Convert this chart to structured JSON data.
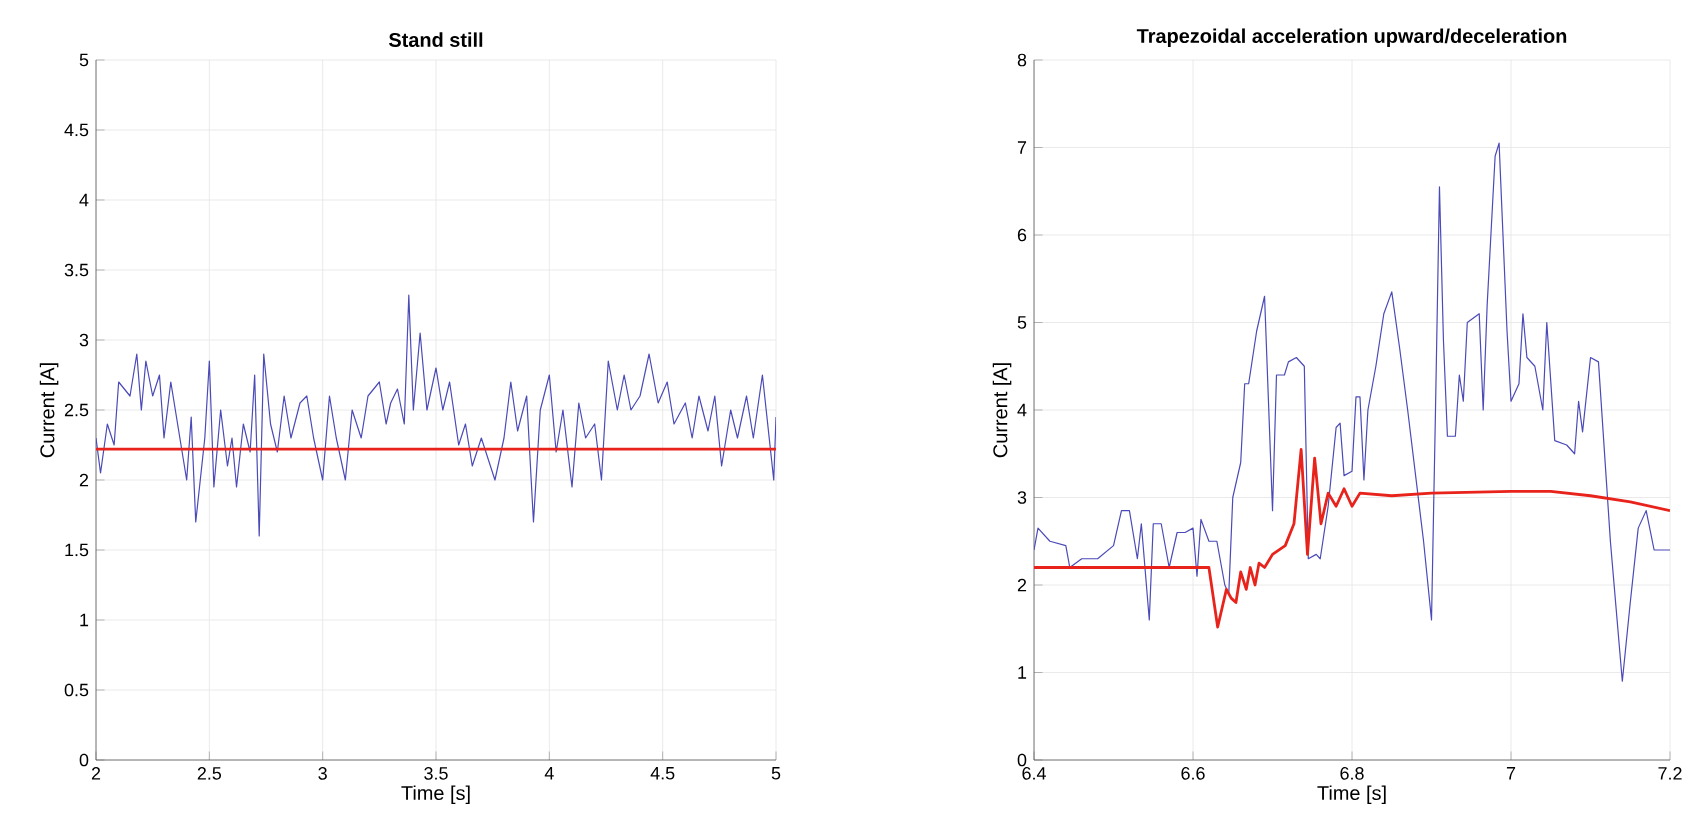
{
  "chart_data": [
    {
      "type": "line",
      "title": "Stand still",
      "xlabel": "Time [s]",
      "ylabel": "Current [A]",
      "xlim": [
        2,
        5
      ],
      "ylim": [
        0,
        5
      ],
      "xticks": [
        2,
        2.5,
        3,
        3.5,
        4,
        4.5,
        5
      ],
      "yticks": [
        0,
        0.5,
        1,
        1.5,
        2,
        2.5,
        3,
        3.5,
        4,
        4.5,
        5
      ],
      "grid": true,
      "series": [
        {
          "color": "#4a4ab8",
          "x": [
            2.0,
            2.02,
            2.05,
            2.08,
            2.1,
            2.15,
            2.18,
            2.2,
            2.22,
            2.25,
            2.28,
            2.3,
            2.33,
            2.36,
            2.38,
            2.4,
            2.42,
            2.44,
            2.48,
            2.5,
            2.52,
            2.55,
            2.58,
            2.6,
            2.62,
            2.65,
            2.68,
            2.7,
            2.72,
            2.74,
            2.77,
            2.8,
            2.83,
            2.86,
            2.9,
            2.93,
            2.96,
            3.0,
            3.03,
            3.06,
            3.1,
            3.13,
            3.17,
            3.2,
            3.25,
            3.28,
            3.3,
            3.33,
            3.36,
            3.38,
            3.4,
            3.43,
            3.46,
            3.5,
            3.53,
            3.56,
            3.6,
            3.63,
            3.66,
            3.7,
            3.73,
            3.76,
            3.8,
            3.83,
            3.86,
            3.9,
            3.93,
            3.96,
            4.0,
            4.03,
            4.06,
            4.1,
            4.13,
            4.16,
            4.2,
            4.23,
            4.26,
            4.3,
            4.33,
            4.36,
            4.4,
            4.44,
            4.48,
            4.52,
            4.55,
            4.6,
            4.63,
            4.66,
            4.7,
            4.73,
            4.76,
            4.8,
            4.83,
            4.87,
            4.9,
            4.94,
            4.97,
            4.99,
            5.0
          ],
          "values": [
            2.3,
            2.05,
            2.4,
            2.25,
            2.7,
            2.6,
            2.9,
            2.5,
            2.85,
            2.6,
            2.75,
            2.3,
            2.7,
            2.4,
            2.2,
            2.0,
            2.45,
            1.7,
            2.3,
            2.85,
            1.95,
            2.5,
            2.1,
            2.3,
            1.95,
            2.4,
            2.2,
            2.75,
            1.6,
            2.9,
            2.4,
            2.2,
            2.6,
            2.3,
            2.55,
            2.6,
            2.3,
            2.0,
            2.6,
            2.3,
            2.0,
            2.5,
            2.3,
            2.6,
            2.7,
            2.4,
            2.55,
            2.65,
            2.4,
            3.32,
            2.5,
            3.05,
            2.5,
            2.8,
            2.5,
            2.7,
            2.25,
            2.4,
            2.1,
            2.3,
            2.15,
            2.0,
            2.3,
            2.7,
            2.35,
            2.6,
            1.7,
            2.5,
            2.75,
            2.2,
            2.5,
            1.95,
            2.55,
            2.3,
            2.4,
            2.0,
            2.85,
            2.5,
            2.75,
            2.5,
            2.6,
            2.9,
            2.55,
            2.7,
            2.4,
            2.55,
            2.3,
            2.6,
            2.35,
            2.6,
            2.1,
            2.5,
            2.3,
            2.6,
            2.3,
            2.75,
            2.3,
            2.0,
            2.45
          ]
        },
        {
          "color": "#e8231c",
          "x": [
            2,
            5
          ],
          "values": [
            2.22,
            2.22
          ]
        }
      ]
    },
    {
      "type": "line",
      "title": "Trapezoidal acceleration upward/deceleration",
      "xlabel": "Time [s]",
      "ylabel": "Current [A]",
      "xlim": [
        6.4,
        7.2
      ],
      "ylim": [
        0,
        8
      ],
      "xticks": [
        6.4,
        6.6,
        6.8,
        7,
        7.2
      ],
      "yticks": [
        0,
        1,
        2,
        3,
        4,
        5,
        6,
        7,
        8
      ],
      "grid": true,
      "series": [
        {
          "color": "#4a4ab8",
          "x": [
            6.4,
            6.405,
            6.42,
            6.44,
            6.445,
            6.46,
            6.48,
            6.5,
            6.51,
            6.52,
            6.53,
            6.535,
            6.545,
            6.55,
            6.56,
            6.57,
            6.58,
            6.59,
            6.6,
            6.605,
            6.61,
            6.62,
            6.63,
            6.64,
            6.645,
            6.65,
            6.66,
            6.665,
            6.67,
            6.68,
            6.69,
            6.7,
            6.705,
            6.715,
            6.72,
            6.73,
            6.74,
            6.745,
            6.755,
            6.76,
            6.77,
            6.78,
            6.785,
            6.79,
            6.8,
            6.805,
            6.81,
            6.815,
            6.82,
            6.83,
            6.84,
            6.85,
            6.86,
            6.87,
            6.89,
            6.9,
            6.905,
            6.91,
            6.915,
            6.92,
            6.93,
            6.935,
            6.94,
            6.945,
            6.96,
            6.965,
            6.97,
            6.98,
            6.985,
            6.995,
            7.0,
            7.01,
            7.015,
            7.02,
            7.03,
            7.04,
            7.045,
            7.055,
            7.07,
            7.08,
            7.085,
            7.09,
            7.1,
            7.11,
            7.125,
            7.14,
            7.15,
            7.16,
            7.17,
            7.18,
            7.2
          ],
          "values": [
            2.4,
            2.65,
            2.5,
            2.45,
            2.2,
            2.3,
            2.3,
            2.45,
            2.85,
            2.85,
            2.3,
            2.7,
            1.6,
            2.7,
            2.7,
            2.2,
            2.6,
            2.6,
            2.65,
            2.1,
            2.75,
            2.5,
            2.5,
            2.0,
            1.9,
            3.0,
            3.4,
            4.3,
            4.3,
            4.9,
            5.3,
            2.85,
            4.4,
            4.4,
            4.55,
            4.6,
            4.5,
            2.3,
            2.35,
            2.3,
            2.9,
            3.8,
            3.85,
            3.25,
            3.3,
            4.15,
            4.15,
            3.2,
            4.0,
            4.5,
            5.1,
            5.35,
            4.7,
            4.0,
            2.5,
            1.6,
            4.0,
            6.55,
            4.8,
            3.7,
            3.7,
            4.4,
            4.1,
            5.0,
            5.1,
            4.0,
            5.2,
            6.9,
            7.05,
            4.9,
            4.1,
            4.3,
            5.1,
            4.6,
            4.5,
            4.0,
            5.0,
            3.65,
            3.6,
            3.5,
            4.1,
            3.75,
            4.6,
            4.55,
            2.5,
            0.9,
            1.8,
            2.65,
            2.85,
            2.4,
            2.4
          ]
        },
        {
          "color": "#e8231c",
          "x": [
            6.4,
            6.62,
            6.631,
            6.642,
            6.648,
            6.654,
            6.66,
            6.667,
            6.672,
            6.678,
            6.683,
            6.69,
            6.7,
            6.716,
            6.727,
            6.736,
            6.744,
            6.753,
            6.761,
            6.77,
            6.78,
            6.79,
            6.8,
            6.81,
            6.85,
            6.9,
            7.0,
            7.05,
            7.1,
            7.15,
            7.2
          ],
          "values": [
            2.2,
            2.2,
            1.52,
            1.95,
            1.85,
            1.8,
            2.15,
            1.95,
            2.2,
            2.0,
            2.25,
            2.2,
            2.35,
            2.45,
            2.7,
            3.55,
            2.35,
            3.45,
            2.7,
            3.05,
            2.9,
            3.1,
            2.9,
            3.05,
            3.02,
            3.05,
            3.07,
            3.07,
            3.02,
            2.95,
            2.85
          ]
        }
      ]
    }
  ]
}
